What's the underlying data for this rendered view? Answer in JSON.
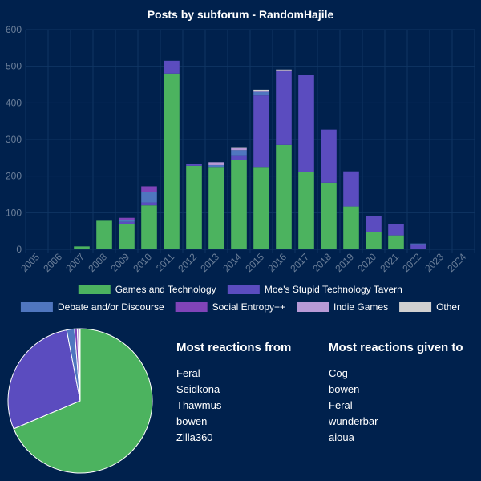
{
  "colors": {
    "background": "#00214d",
    "grid": "#0f3563",
    "tick": "#6b7f99",
    "text": "#ffffff"
  },
  "chart_data": [
    {
      "type": "bar",
      "stacked": true,
      "title": "Posts by subforum - RandomHajile",
      "categories": [
        "2005",
        "2006",
        "2007",
        "2008",
        "2009",
        "2010",
        "2011",
        "2012",
        "2013",
        "2014",
        "2015",
        "2016",
        "2017",
        "2018",
        "2019",
        "2020",
        "2021",
        "2022",
        "2023",
        "2024"
      ],
      "ylim": [
        0,
        600
      ],
      "yticks": [
        0,
        100,
        200,
        300,
        400,
        500,
        600
      ],
      "grid": true,
      "legend": "bottom",
      "series": [
        {
          "name": "Games and Technology",
          "color": "#4cb35f",
          "values": [
            2,
            0,
            8,
            78,
            70,
            120,
            480,
            228,
            225,
            245,
            225,
            285,
            212,
            182,
            117,
            46,
            38,
            0,
            0,
            0
          ]
        },
        {
          "name": "Moe's Stupid Technology Tavern",
          "color": "#5b4cbf",
          "values": [
            0,
            0,
            0,
            0,
            5,
            8,
            35,
            5,
            0,
            12,
            195,
            202,
            265,
            145,
            96,
            45,
            30,
            14,
            0,
            0
          ]
        },
        {
          "name": "Debate and/or Discourse",
          "color": "#4f76bf",
          "values": [
            0,
            0,
            0,
            0,
            6,
            28,
            0,
            0,
            5,
            14,
            10,
            0,
            0,
            0,
            0,
            0,
            0,
            2,
            0,
            0
          ]
        },
        {
          "name": "Social Entropy++",
          "color": "#8044b8",
          "values": [
            0,
            0,
            0,
            0,
            5,
            16,
            0,
            0,
            0,
            0,
            0,
            2,
            0,
            0,
            0,
            0,
            0,
            0,
            0,
            0
          ]
        },
        {
          "name": "Indie Games",
          "color": "#b89ad6",
          "values": [
            0,
            0,
            0,
            0,
            0,
            0,
            0,
            0,
            8,
            5,
            3,
            0,
            0,
            0,
            0,
            0,
            0,
            0,
            0,
            0
          ]
        },
        {
          "name": "Other",
          "color": "#d0d0d0",
          "values": [
            0,
            0,
            0,
            0,
            0,
            0,
            0,
            0,
            0,
            3,
            3,
            2,
            0,
            0,
            0,
            0,
            0,
            0,
            0,
            0
          ]
        }
      ]
    },
    {
      "type": "pie",
      "labels": [
        "Games and Technology",
        "Moe's Stupid Technology Tavern",
        "Debate and/or Discourse",
        "Social Entropy++",
        "Indie Games",
        "Other"
      ],
      "colors": [
        "#4cb35f",
        "#5b4cbf",
        "#4f76bf",
        "#8044b8",
        "#b89ad6",
        "#d0d0d0"
      ],
      "values": [
        2562,
        1057,
        65,
        23,
        16,
        8
      ]
    }
  ],
  "reactions_from": {
    "title": "Most reactions from",
    "items": [
      "Feral",
      "Seidkona",
      "Thawmus",
      "bowen",
      "Zilla360"
    ]
  },
  "reactions_given": {
    "title": "Most reactions given to",
    "items": [
      "Cog",
      "bowen",
      "Feral",
      "wunderbar",
      "aioua"
    ]
  }
}
